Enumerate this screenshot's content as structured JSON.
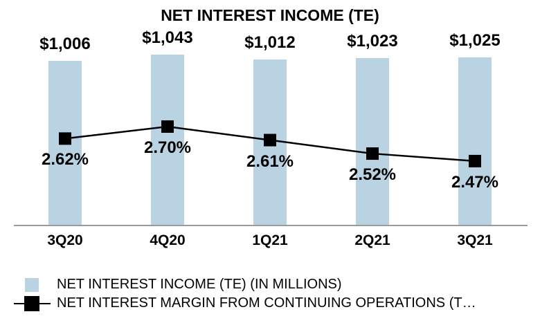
{
  "chart_data": {
    "type": "combo",
    "title": "NET INTEREST INCOME (TE)",
    "categories": [
      "3Q20",
      "4Q20",
      "1Q21",
      "2Q21",
      "3Q21"
    ],
    "series": [
      {
        "name": "NET INTEREST INCOME (TE) (IN MILLIONS)",
        "type": "bar",
        "values": [
          1006,
          1043,
          1012,
          1023,
          1025
        ],
        "labels": [
          "$1,006",
          "$1,043",
          "$1,012",
          "$1,023",
          "$1,025"
        ],
        "color": "#B9D3E2"
      },
      {
        "name": "NET INTEREST MARGIN FROM CONTINUING OPERATIONS (T…",
        "type": "line",
        "marker": "square",
        "values": [
          2.62,
          2.7,
          2.61,
          2.52,
          2.47
        ],
        "labels": [
          "2.62%",
          "2.70%",
          "2.61%",
          "2.52%",
          "2.47%"
        ],
        "color": "#000000"
      }
    ],
    "grid": false,
    "axis_line_color": "#9A9A9A",
    "legend_position": "bottom-left",
    "background": "#FFFFFF"
  },
  "legend": {
    "items": [
      {
        "label": "NET INTEREST INCOME (TE) (IN MILLIONS)",
        "swatch": "bar",
        "color": "#B9D3E2"
      },
      {
        "label": "NET INTEREST MARGIN FROM CONTINUING OPERATIONS (T…",
        "swatch": "line-marker",
        "color": "#000000"
      }
    ]
  }
}
